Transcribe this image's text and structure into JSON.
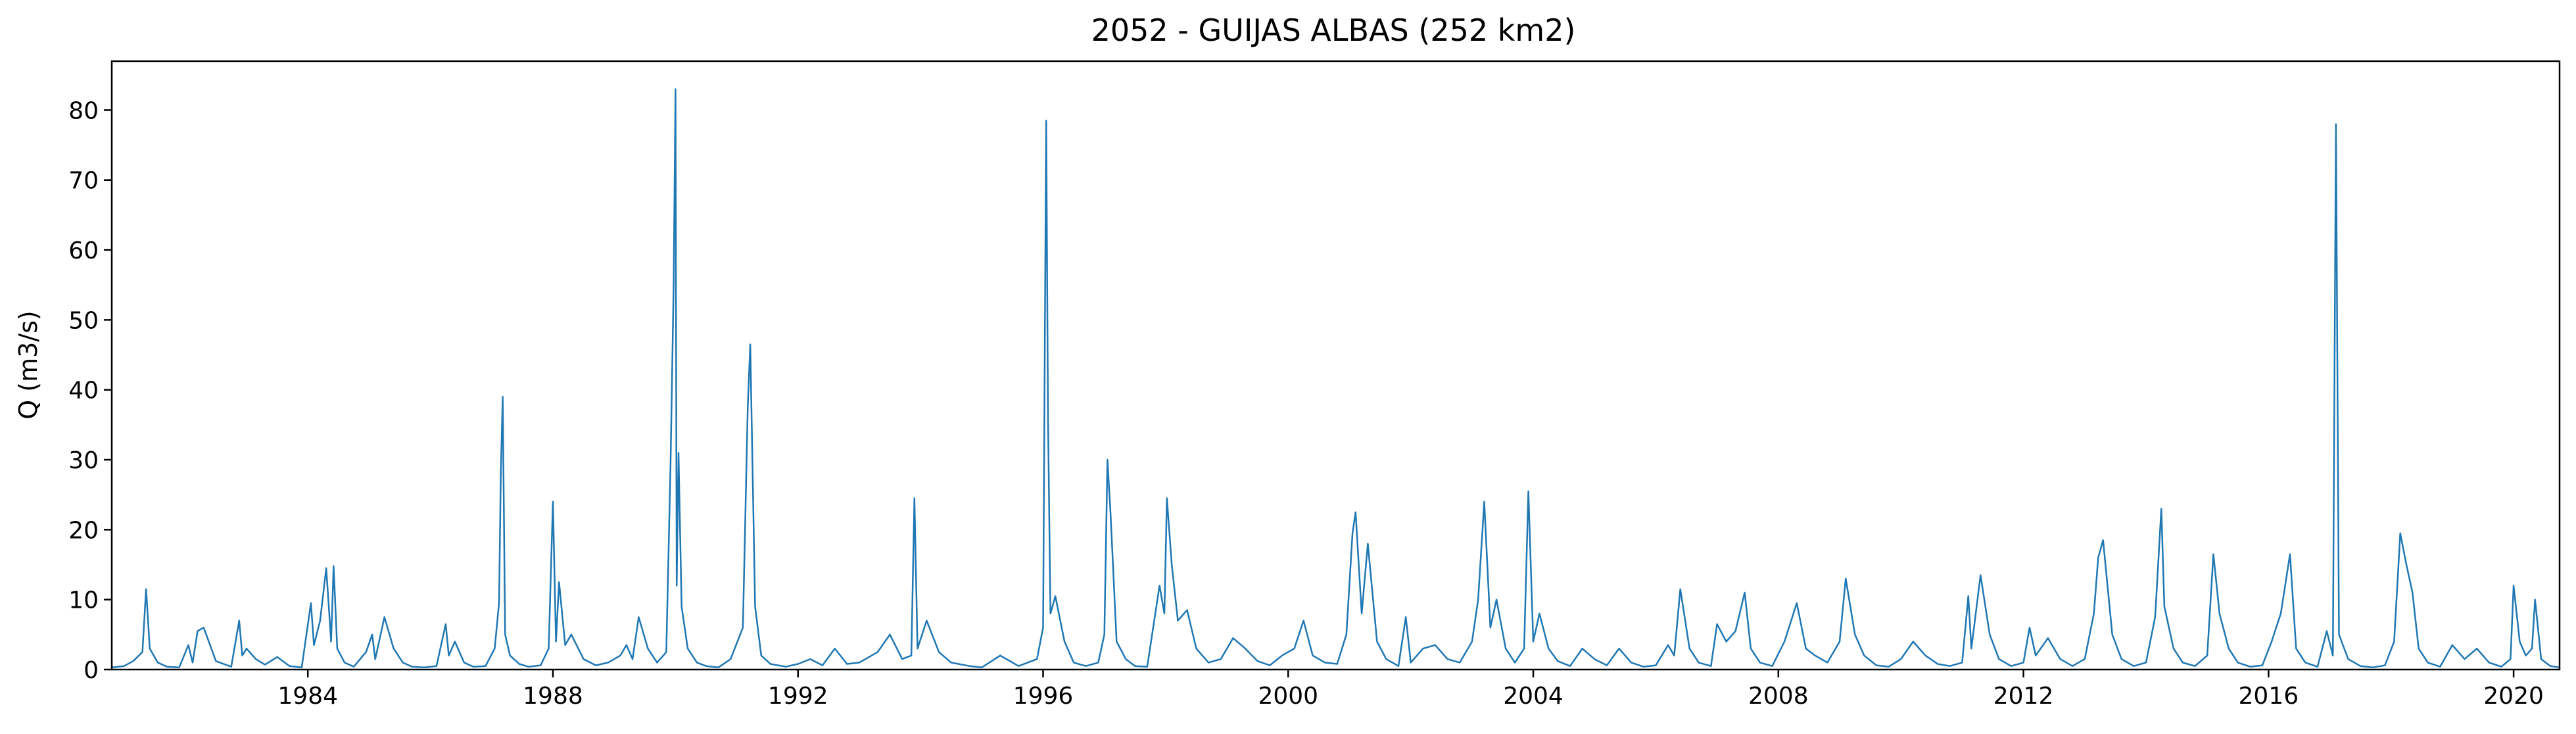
{
  "chart_data": {
    "type": "line",
    "title": "2052 - GUIJAS ALBAS (252 km2)",
    "xlabel": "",
    "ylabel": "Q (m3/s)",
    "xlim": [
      1980.8,
      2020.75
    ],
    "ylim": [
      0,
      87
    ],
    "x_ticks": [
      1984,
      1988,
      1992,
      1996,
      2000,
      2004,
      2008,
      2012,
      2016,
      2020
    ],
    "y_ticks": [
      0,
      10,
      20,
      30,
      40,
      50,
      60,
      70,
      80
    ],
    "grid": false,
    "legend": "none",
    "color": "#1f77b4",
    "series": [
      {
        "x": [
          1980.8,
          1981.0,
          1981.15,
          1981.3,
          1981.36,
          1981.42,
          1981.55,
          1981.7,
          1981.9,
          1982.05,
          1982.12,
          1982.2,
          1982.3,
          1982.5,
          1982.75,
          1982.88,
          1982.93,
          1983.0,
          1983.15,
          1983.3,
          1983.5,
          1983.7,
          1983.9,
          1984.05,
          1984.1,
          1984.2,
          1984.3,
          1984.38,
          1984.42,
          1984.48,
          1984.6,
          1984.75,
          1984.95,
          1985.05,
          1985.1,
          1985.15,
          1985.25,
          1985.4,
          1985.55,
          1985.7,
          1985.9,
          1986.1,
          1986.25,
          1986.3,
          1986.4,
          1986.55,
          1986.7,
          1986.9,
          1987.05,
          1987.12,
          1987.15,
          1987.18,
          1987.22,
          1987.3,
          1987.45,
          1987.6,
          1987.8,
          1987.93,
          1988.0,
          1988.05,
          1988.1,
          1988.2,
          1988.3,
          1988.5,
          1988.7,
          1988.9,
          1989.1,
          1989.2,
          1989.3,
          1989.4,
          1989.55,
          1989.7,
          1989.85,
          1989.92,
          1989.97,
          1990.0,
          1990.02,
          1990.05,
          1990.1,
          1990.2,
          1990.35,
          1990.5,
          1990.7,
          1990.9,
          1991.1,
          1991.18,
          1991.22,
          1991.3,
          1991.4,
          1991.55,
          1991.8,
          1992.0,
          1992.2,
          1992.4,
          1992.6,
          1992.8,
          1993.0,
          1993.3,
          1993.5,
          1993.7,
          1993.85,
          1993.9,
          1993.95,
          1994.1,
          1994.3,
          1994.5,
          1994.8,
          1995.0,
          1995.3,
          1995.6,
          1995.9,
          1996.0,
          1996.05,
          1996.08,
          1996.12,
          1996.2,
          1996.35,
          1996.5,
          1996.7,
          1996.9,
          1997.0,
          1997.05,
          1997.1,
          1997.2,
          1997.35,
          1997.5,
          1997.7,
          1997.9,
          1997.98,
          1998.02,
          1998.1,
          1998.2,
          1998.35,
          1998.5,
          1998.7,
          1998.9,
          1999.1,
          1999.3,
          1999.5,
          1999.7,
          1999.9,
          2000.1,
          2000.25,
          2000.4,
          2000.6,
          2000.8,
          2000.95,
          2001.05,
          2001.1,
          2001.2,
          2001.3,
          2001.45,
          2001.6,
          2001.8,
          2001.92,
          2002.0,
          2002.2,
          2002.4,
          2002.6,
          2002.8,
          2003.0,
          2003.1,
          2003.2,
          2003.3,
          2003.4,
          2003.55,
          2003.7,
          2003.85,
          2003.92,
          2004.0,
          2004.1,
          2004.25,
          2004.4,
          2004.6,
          2004.8,
          2005.0,
          2005.2,
          2005.4,
          2005.6,
          2005.8,
          2006.0,
          2006.2,
          2006.3,
          2006.4,
          2006.55,
          2006.7,
          2006.9,
          2007.0,
          2007.15,
          2007.3,
          2007.45,
          2007.55,
          2007.7,
          2007.9,
          2008.1,
          2008.3,
          2008.45,
          2008.6,
          2008.8,
          2009.0,
          2009.1,
          2009.25,
          2009.4,
          2009.6,
          2009.8,
          2010.0,
          2010.2,
          2010.4,
          2010.6,
          2010.8,
          2011.0,
          2011.1,
          2011.15,
          2011.3,
          2011.45,
          2011.6,
          2011.8,
          2012.0,
          2012.1,
          2012.2,
          2012.4,
          2012.6,
          2012.8,
          2013.0,
          2013.15,
          2013.22,
          2013.3,
          2013.45,
          2013.6,
          2013.8,
          2014.0,
          2014.15,
          2014.25,
          2014.3,
          2014.45,
          2014.6,
          2014.8,
          2015.0,
          2015.1,
          2015.2,
          2015.35,
          2015.5,
          2015.7,
          2015.9,
          2016.05,
          2016.2,
          2016.35,
          2016.45,
          2016.6,
          2016.8,
          2016.95,
          2017.05,
          2017.1,
          2017.15,
          2017.3,
          2017.5,
          2017.7,
          2017.9,
          2018.05,
          2018.15,
          2018.25,
          2018.35,
          2018.45,
          2018.6,
          2018.8,
          2019.0,
          2019.2,
          2019.4,
          2019.6,
          2019.8,
          2019.95,
          2020.0,
          2020.1,
          2020.2,
          2020.3,
          2020.35,
          2020.45,
          2020.6,
          2020.75
        ],
        "values": [
          0.3,
          0.5,
          1.2,
          2.5,
          11.5,
          3.0,
          1.0,
          0.4,
          0.3,
          3.5,
          1.0,
          5.5,
          6.0,
          1.2,
          0.4,
          7.0,
          2.0,
          3.0,
          1.5,
          0.7,
          1.8,
          0.5,
          0.3,
          9.5,
          3.5,
          7.0,
          14.5,
          4.0,
          14.8,
          3.0,
          1.0,
          0.4,
          2.5,
          5.0,
          1.5,
          3.5,
          7.5,
          3.0,
          1.0,
          0.4,
          0.3,
          0.5,
          6.5,
          2.0,
          4.0,
          1.0,
          0.4,
          0.5,
          3.0,
          9.5,
          28.5,
          39.0,
          5.0,
          2.0,
          0.8,
          0.4,
          0.6,
          3.0,
          24.0,
          4.0,
          12.5,
          3.5,
          5.0,
          1.5,
          0.6,
          1.0,
          2.0,
          3.5,
          1.5,
          7.5,
          3.0,
          1.0,
          2.5,
          29.5,
          55.0,
          83.0,
          12.0,
          31.0,
          9.0,
          3.0,
          1.0,
          0.5,
          0.3,
          1.5,
          6.0,
          37.5,
          46.5,
          9.0,
          2.0,
          0.8,
          0.4,
          0.8,
          1.5,
          0.6,
          3.0,
          0.8,
          1.0,
          2.5,
          5.0,
          1.5,
          2.0,
          24.5,
          3.0,
          7.0,
          2.5,
          1.0,
          0.5,
          0.3,
          2.0,
          0.5,
          1.5,
          6.0,
          78.5,
          36.0,
          8.0,
          10.5,
          4.0,
          1.0,
          0.5,
          1.0,
          5.0,
          30.0,
          22.5,
          4.0,
          1.5,
          0.5,
          0.4,
          12.0,
          8.0,
          24.5,
          15.0,
          7.0,
          8.5,
          3.0,
          1.0,
          1.5,
          4.5,
          3.0,
          1.2,
          0.6,
          2.0,
          3.0,
          7.0,
          2.0,
          1.0,
          0.8,
          5.0,
          19.5,
          22.5,
          8.0,
          18.0,
          4.0,
          1.5,
          0.5,
          7.5,
          1.0,
          3.0,
          3.5,
          1.5,
          1.0,
          4.0,
          10.0,
          24.0,
          6.0,
          10.0,
          3.0,
          1.0,
          3.0,
          25.5,
          4.0,
          8.0,
          3.0,
          1.2,
          0.5,
          3.0,
          1.5,
          0.6,
          3.0,
          1.0,
          0.4,
          0.6,
          3.5,
          2.0,
          11.5,
          3.0,
          1.0,
          0.5,
          6.5,
          4.0,
          5.5,
          11.0,
          3.0,
          1.0,
          0.5,
          4.0,
          9.5,
          3.0,
          2.0,
          1.0,
          4.0,
          13.0,
          5.0,
          2.0,
          0.6,
          0.4,
          1.5,
          4.0,
          2.0,
          0.8,
          0.5,
          1.0,
          10.5,
          3.0,
          13.5,
          5.0,
          1.5,
          0.5,
          1.0,
          6.0,
          2.0,
          4.5,
          1.5,
          0.5,
          1.5,
          8.0,
          16.0,
          18.5,
          5.0,
          1.5,
          0.5,
          1.0,
          7.5,
          23.0,
          9.0,
          3.0,
          1.0,
          0.5,
          2.0,
          16.5,
          8.0,
          3.0,
          1.0,
          0.4,
          0.6,
          4.0,
          8.0,
          16.5,
          3.0,
          1.0,
          0.4,
          5.5,
          2.0,
          78.0,
          5.0,
          1.5,
          0.5,
          0.3,
          0.6,
          4.0,
          19.5,
          15.0,
          11.0,
          3.0,
          1.0,
          0.4,
          3.5,
          1.5,
          3.0,
          1.0,
          0.4,
          1.5,
          12.0,
          4.0,
          2.0,
          3.0,
          10.0,
          1.5,
          0.5,
          0.3
        ]
      }
    ]
  }
}
